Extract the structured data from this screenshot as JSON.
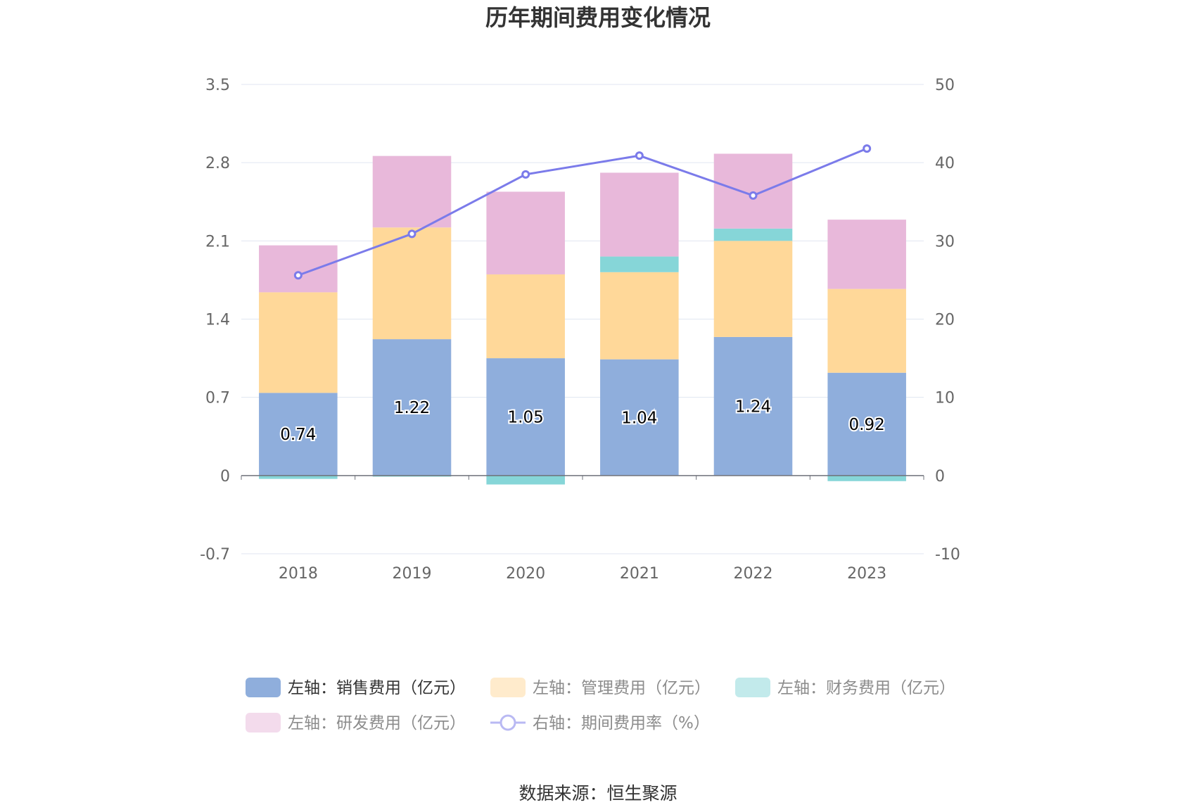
{
  "chart_data": {
    "type": "bar",
    "title": "历年期间费用变化情况",
    "categories": [
      "2018",
      "2019",
      "2020",
      "2021",
      "2022",
      "2023"
    ],
    "y_left": {
      "min": -0.7,
      "max": 3.5,
      "ticks": [
        "3.5",
        "2.8",
        "2.1",
        "1.4",
        "0.7",
        "0",
        "-0.7"
      ]
    },
    "y_right": {
      "min": -10,
      "max": 50,
      "ticks": [
        "50",
        "40",
        "30",
        "20",
        "10",
        "0",
        "-10"
      ]
    },
    "grid": true,
    "legend_position": "bottom",
    "series": [
      {
        "name": "左轴：销售费用（亿元）",
        "type": "bar",
        "axis": "left",
        "color": "#8faedc",
        "values": [
          0.74,
          1.22,
          1.05,
          1.04,
          1.24,
          0.92
        ],
        "labels": [
          "0.74",
          "1.22",
          "1.05",
          "1.04",
          "1.24",
          "0.92"
        ]
      },
      {
        "name": "左轴：管理费用（亿元）",
        "type": "bar",
        "axis": "left",
        "color": "#ffd899",
        "values": [
          0.9,
          1.0,
          0.75,
          0.78,
          0.86,
          0.75
        ]
      },
      {
        "name": "左轴：财务费用（亿元）",
        "type": "bar",
        "axis": "left",
        "color": "#86d6d8",
        "values": [
          -0.03,
          -0.01,
          -0.08,
          0.14,
          0.11,
          -0.05
        ]
      },
      {
        "name": "左轴：研发费用（亿元）",
        "type": "bar",
        "axis": "left",
        "color": "#e8b8da",
        "values": [
          0.42,
          0.64,
          0.74,
          0.75,
          0.67,
          0.62
        ]
      },
      {
        "name": "右轴：期间费用率（%）",
        "type": "line",
        "axis": "right",
        "color": "#7b7bea",
        "values": [
          25.6,
          30.9,
          38.5,
          40.9,
          35.8,
          41.8
        ]
      }
    ],
    "source": "数据来源：恒生聚源"
  }
}
